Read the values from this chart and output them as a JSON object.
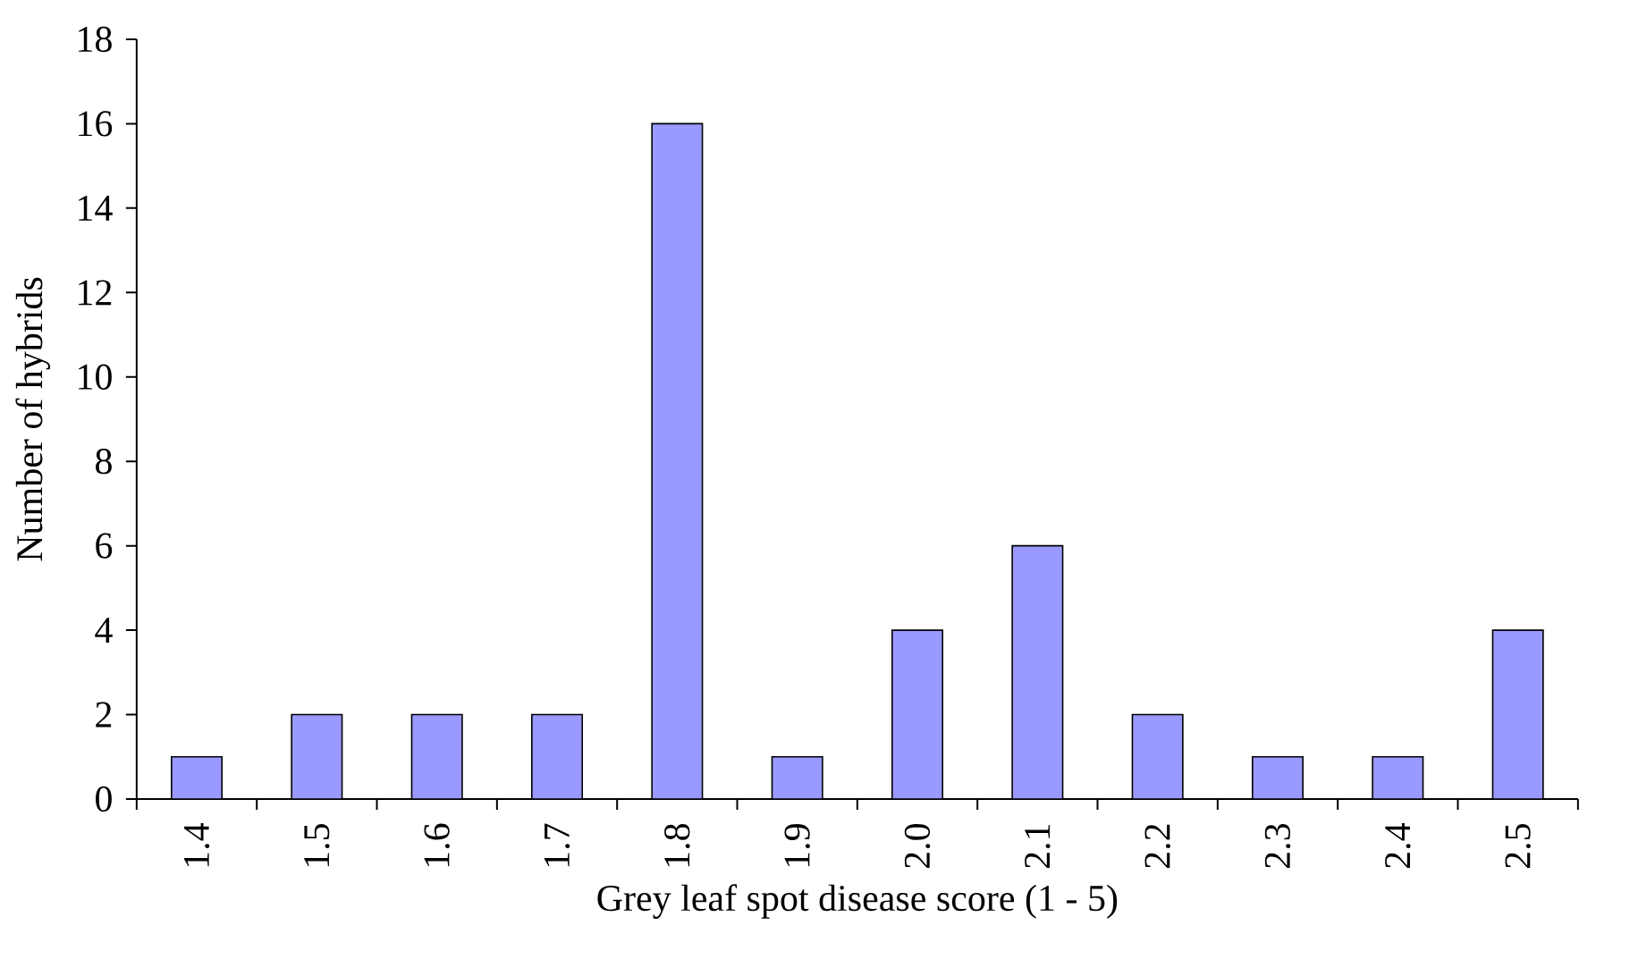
{
  "chart_data": {
    "type": "bar",
    "xlabel": "Grey leaf spot disease score (1 - 5)",
    "ylabel": "Number of hybrids",
    "categories": [
      "1.4",
      "1.5",
      "1.6",
      "1.7",
      "1.8",
      "1.9",
      "2.0",
      "2.1",
      "2.2",
      "2.3",
      "2.4",
      "2.5"
    ],
    "values": [
      1,
      2,
      2,
      2,
      16,
      1,
      4,
      6,
      2,
      1,
      1,
      4
    ],
    "color": "#9999ff",
    "ylim": [
      0,
      18
    ],
    "yticks": [
      0,
      2,
      4,
      6,
      8,
      10,
      12,
      14,
      16,
      18
    ]
  }
}
